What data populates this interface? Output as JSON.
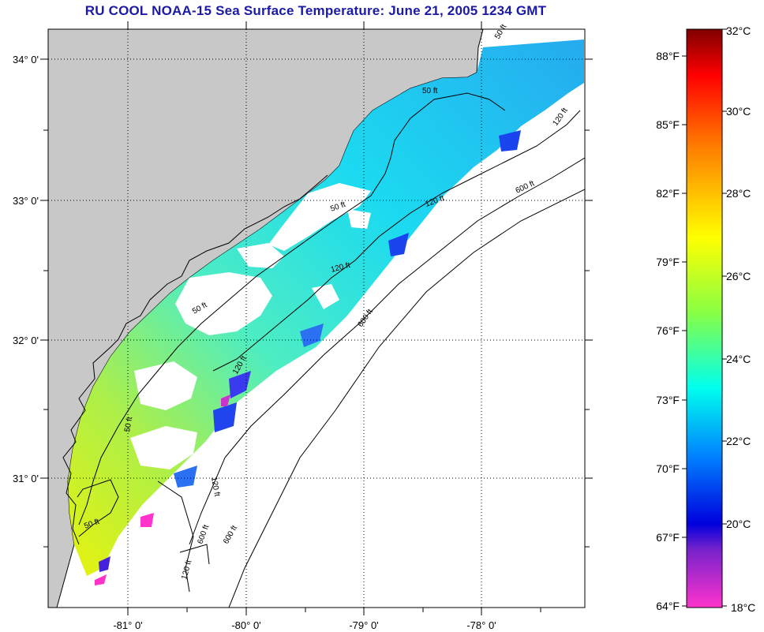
{
  "title": "RU COOL  NOAA-15  Sea Surface Temperature:  June 21, 2005 1234 GMT",
  "map": {
    "lat_labels": [
      "34° 0'",
      "33° 0'",
      "32° 0'",
      "31° 0'"
    ],
    "lon_labels": [
      "-81° 0'",
      "-80° 0'",
      "-79° 0'",
      "-78° 0'"
    ],
    "contour_labels": [
      "50 ft",
      "50 ft",
      "50 ft",
      "50 ft",
      "50 ft",
      "50 ft",
      "120 ft",
      "120 ft",
      "120 ft",
      "120 ft",
      "120 ft",
      "120 ft",
      "600 ft",
      "600 ft",
      "600 ft",
      "600 ft"
    ],
    "land_color": "#c8c8c8",
    "cloud_color": "#ffffff",
    "grid": "dotted"
  },
  "colorbar": {
    "fahrenheit_labels": [
      "88°F",
      "85°F",
      "82°F",
      "79°F",
      "76°F",
      "73°F",
      "70°F",
      "67°F",
      "64°F"
    ],
    "celsius_labels": [
      "32°C",
      "30°C",
      "28°C",
      "26°C",
      "24°C",
      "22°C",
      "20°C",
      "18°C"
    ]
  }
}
